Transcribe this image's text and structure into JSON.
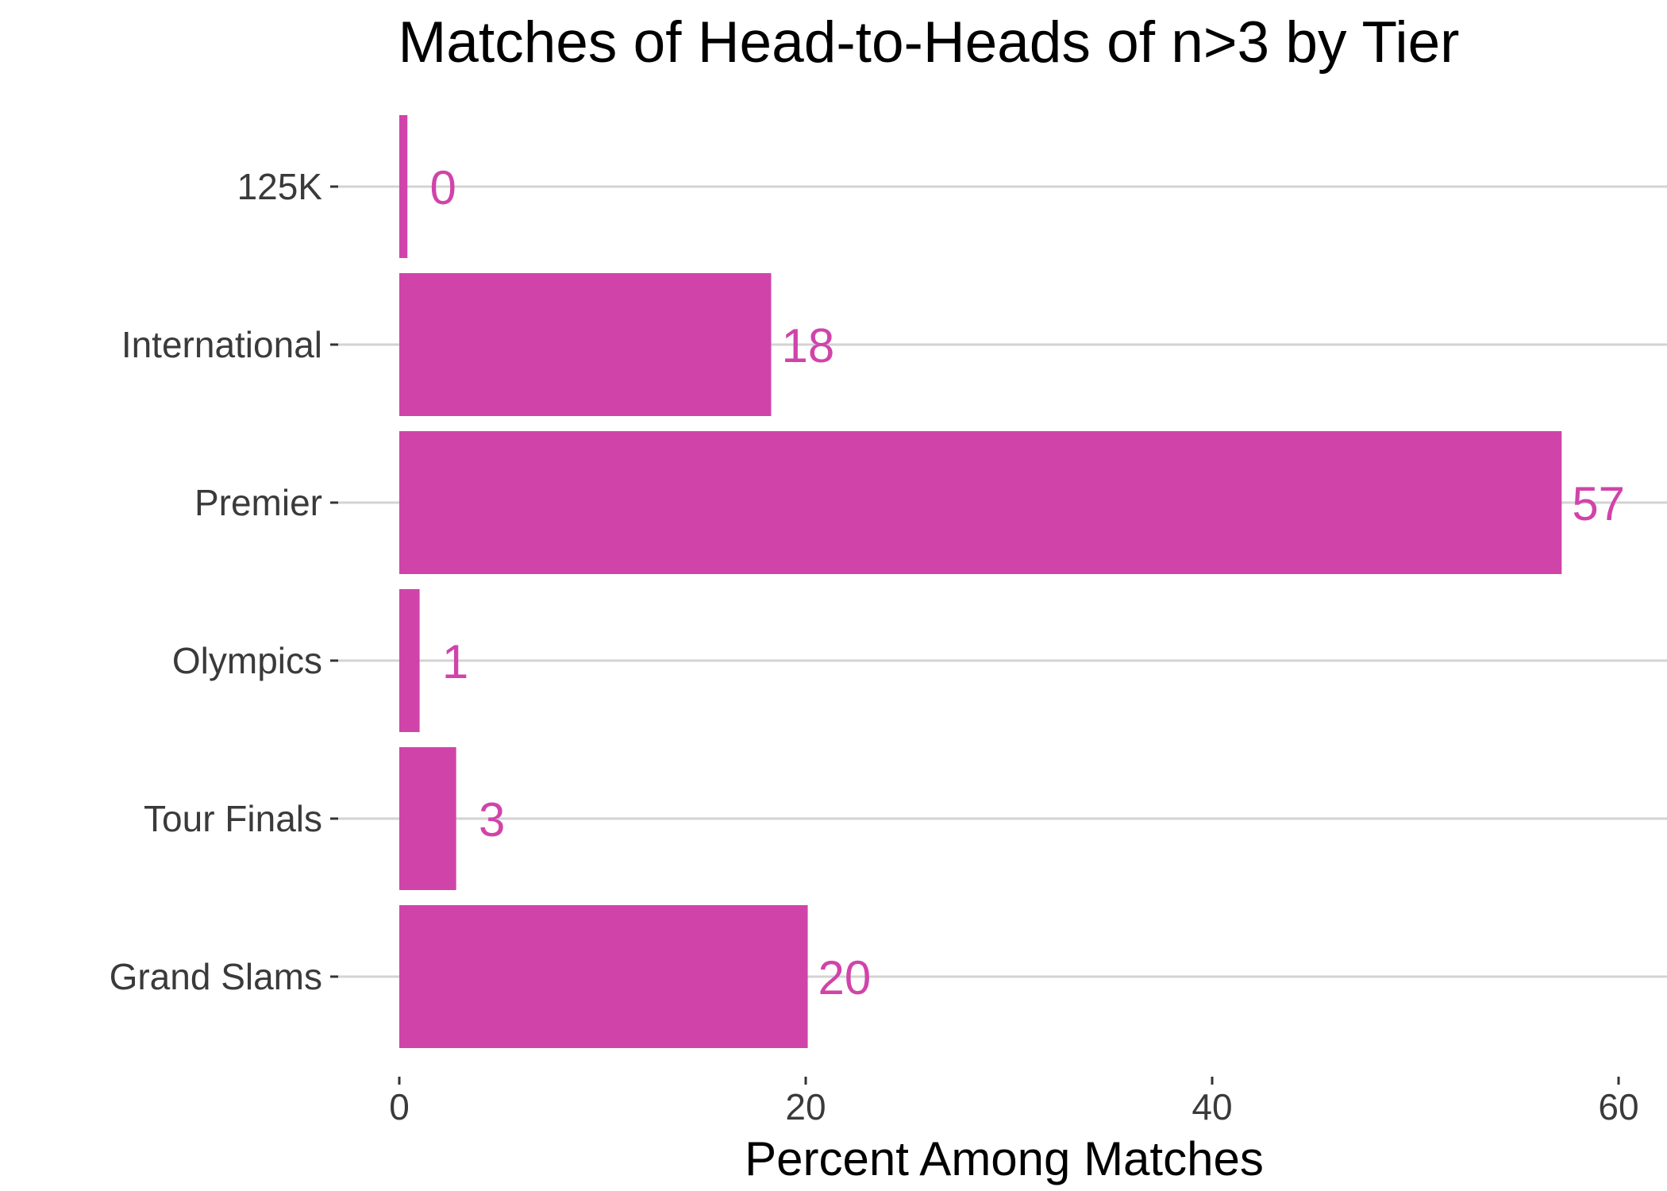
{
  "colors": {
    "bar": "#d044aa",
    "value_label": "#d044aa",
    "grid": "#d3d3d3"
  },
  "chart_data": {
    "type": "bar",
    "orientation": "horizontal",
    "title": "Matches of Head-to-Heads of n>3 by Tier",
    "xlabel": "Percent Among Matches",
    "ylabel": "",
    "categories": [
      "125K",
      "International",
      "Premier",
      "Olympics",
      "Tour Finals",
      "Grand Slams"
    ],
    "values": [
      0.4,
      18.3,
      57.2,
      1.0,
      2.8,
      20.1
    ],
    "value_labels": [
      "0",
      "18",
      "57",
      "1",
      "3",
      "20"
    ],
    "xlim": [
      0,
      62
    ],
    "x_ticks": [
      "0",
      "20",
      "40",
      "60"
    ],
    "grid": "horizontal",
    "legend": "none"
  }
}
